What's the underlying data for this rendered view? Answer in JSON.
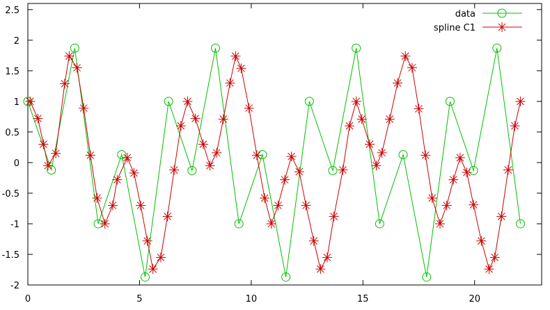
{
  "chart_data": {
    "type": "line",
    "xlim": [
      0,
      23
    ],
    "ylim": [
      -2,
      2.6
    ],
    "xticks": [
      0,
      5,
      10,
      15,
      20
    ],
    "yticks": [
      -2,
      -1.5,
      -1,
      -0.5,
      0,
      0.5,
      1,
      1.5,
      2,
      2.5
    ],
    "grid": false,
    "legend_position": "top-right",
    "series": [
      {
        "name": "data",
        "color": "#00c000",
        "marker": "circle",
        "x": [
          0,
          1.05,
          2.1,
          3.15,
          4.2,
          5.25,
          6.3,
          7.35,
          8.4,
          9.45,
          10.5,
          11.55,
          12.6,
          13.65,
          14.7,
          15.75,
          16.8,
          17.85,
          18.9,
          19.95,
          21.0,
          22.05
        ],
        "y": [
          1.0,
          -0.12,
          1.87,
          -1.0,
          0.13,
          -1.87,
          1.0,
          -0.13,
          1.87,
          -1.0,
          0.13,
          -1.87,
          1.0,
          -0.13,
          1.87,
          -1.0,
          0.13,
          -1.87,
          1.0,
          -0.13,
          1.87,
          -1.0
        ]
      },
      {
        "name": "spline C1",
        "color": "#cc0000",
        "marker": "star",
        "x": [
          0.1,
          0.45,
          0.7,
          0.9,
          1.25,
          1.65,
          1.85,
          2.2,
          2.5,
          2.8,
          3.1,
          3.45,
          3.8,
          4.0,
          4.45,
          4.75,
          5.05,
          5.35,
          5.6,
          5.95,
          6.25,
          6.55,
          6.85,
          7.15,
          7.5,
          7.85,
          8.15,
          8.45,
          8.75,
          9.05,
          9.3,
          9.55,
          9.9,
          10.25,
          10.6,
          10.9,
          11.2,
          11.5,
          11.8,
          12.15,
          12.45,
          12.8,
          13.1,
          13.4,
          13.7,
          14.1,
          14.4,
          14.7,
          14.95,
          15.3,
          15.6,
          15.85,
          16.2,
          16.55,
          16.9,
          17.2,
          17.5,
          17.8,
          18.1,
          18.45,
          18.75,
          19.05,
          19.35,
          19.65,
          19.95,
          20.3,
          20.65,
          20.9,
          21.2,
          21.5,
          21.8,
          22.05
        ],
        "y": [
          1.0,
          0.72,
          0.3,
          -0.05,
          0.15,
          1.29,
          1.74,
          1.55,
          0.89,
          0.12,
          -0.58,
          -1.0,
          -0.7,
          -0.28,
          0.08,
          -0.17,
          -0.7,
          -1.28,
          -1.74,
          -1.55,
          -0.88,
          -0.12,
          0.6,
          1.0,
          0.72,
          0.3,
          -0.05,
          0.16,
          0.71,
          1.3,
          1.74,
          1.54,
          0.89,
          0.12,
          -0.58,
          -1.0,
          -0.7,
          -0.28,
          0.1,
          -0.15,
          -0.7,
          -1.28,
          -1.74,
          -1.55,
          -0.88,
          -0.12,
          0.6,
          1.0,
          0.71,
          0.3,
          -0.05,
          0.16,
          0.71,
          1.3,
          1.74,
          1.55,
          0.88,
          0.12,
          -0.58,
          -1.0,
          -0.7,
          -0.28,
          0.08,
          -0.16,
          -0.69,
          -1.28,
          -1.74,
          -1.55,
          -0.88,
          -0.12,
          0.6,
          1.0
        ]
      }
    ]
  }
}
